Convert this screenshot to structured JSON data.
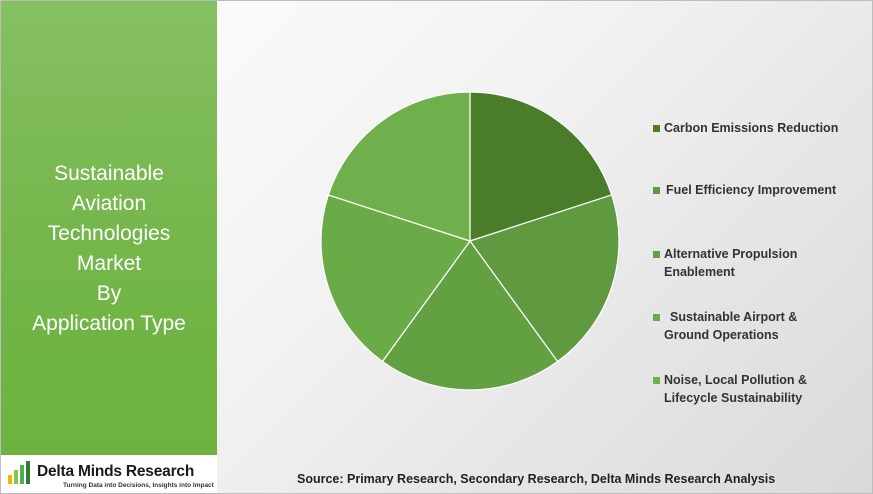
{
  "panel": {
    "title_lines": [
      "Sustainable",
      "Aviation",
      "Technologies",
      "Market",
      "By",
      "Application Type"
    ]
  },
  "logo": {
    "name": "Delta Minds Research",
    "tagline": "Turning Data into Decisions, Insights into Impact",
    "bar_colors": [
      "#f2b705",
      "#8bc34a",
      "#4caf50",
      "#2e7d32"
    ]
  },
  "chart_data": {
    "type": "pie",
    "title": "",
    "categories": [
      "Carbon Emissions Reduction",
      "Fuel Efficiency Improvement",
      "Alternative Propulsion Enablement",
      "Sustainable Airport & Ground Operations",
      "Noise, Local Pollution & Lifecycle Sustainability"
    ],
    "values": [
      20,
      20,
      20,
      20,
      20
    ],
    "colors": [
      "#4a7d2a",
      "#5f9940",
      "#63a042",
      "#6aab48",
      "#6fb04c"
    ],
    "legend_position": "right"
  },
  "legend": [
    {
      "label": "Carbon Emissions Reduction"
    },
    {
      "label": "Fuel Efficiency Improvement"
    },
    {
      "label": "Alternative Propulsion Enablement"
    },
    {
      "label": "Sustainable Airport & Ground Operations"
    },
    {
      "label": "Noise, Local Pollution & Lifecycle Sustainability"
    }
  ],
  "source": "Source: Primary Research, Secondary Research, Delta Minds Research Analysis"
}
